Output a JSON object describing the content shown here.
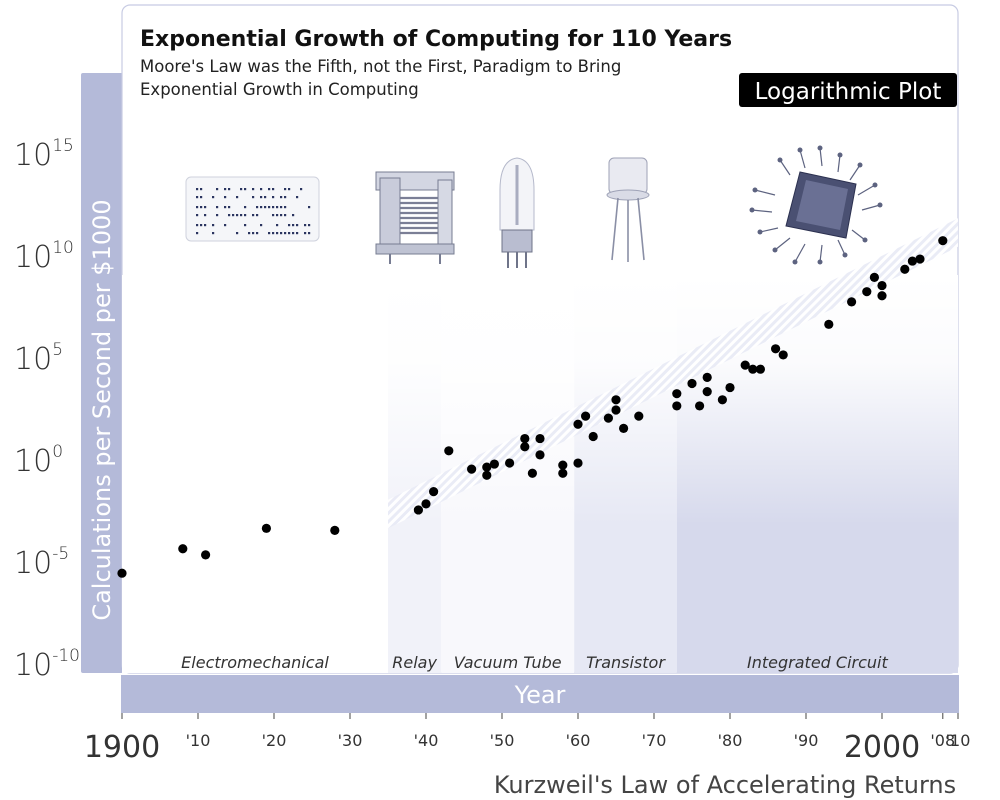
{
  "chart_data": {
    "type": "scatter",
    "title": "Exponential Growth of Computing for 110 Years",
    "subtitle_lines": [
      "Moore's Law was the Fifth, not the First, Paradigm to Bring",
      "Exponential Growth in Computing"
    ],
    "badge": "Logarithmic Plot",
    "ylabel": "Calculations per Second per $1000",
    "xlabel": "Year",
    "footer": "Kurzweil's Law of Accelerating Returns",
    "y_scale": "log10",
    "ylim_exponent": [
      -10,
      15
    ],
    "xlim": [
      1900,
      2010
    ],
    "x_ticks": [
      {
        "value": 1900,
        "label": "1900",
        "major": true
      },
      {
        "value": 1910,
        "label": "'10"
      },
      {
        "value": 1920,
        "label": "'20"
      },
      {
        "value": 1930,
        "label": "'30"
      },
      {
        "value": 1940,
        "label": "'40"
      },
      {
        "value": 1950,
        "label": "'50"
      },
      {
        "value": 1960,
        "label": "'60"
      },
      {
        "value": 1970,
        "label": "'70"
      },
      {
        "value": 1980,
        "label": "'80"
      },
      {
        "value": 1990,
        "label": "'90"
      },
      {
        "value": 2000,
        "label": "2000",
        "major": true
      },
      {
        "value": 2008,
        "label": "'08"
      },
      {
        "value": 2010,
        "label": "'10"
      }
    ],
    "y_ticks": [
      {
        "exponent": 15,
        "base": "10",
        "sup": "15"
      },
      {
        "exponent": 10,
        "base": "10",
        "sup": "10"
      },
      {
        "exponent": 5,
        "base": "10",
        "sup": "5"
      },
      {
        "exponent": 0,
        "base": "10",
        "sup": "0"
      },
      {
        "exponent": -5,
        "base": "10",
        "sup": "-5"
      },
      {
        "exponent": -10,
        "base": "10",
        "sup": "-10"
      }
    ],
    "eras": [
      {
        "name": "Electromechanical",
        "start": 1900,
        "end": 1935,
        "color": "#ffffff",
        "icon": "punch-card-icon"
      },
      {
        "name": "Relay",
        "start": 1935,
        "end": 1942,
        "color": "#f1f2f9",
        "icon": "relay-icon"
      },
      {
        "name": "Vacuum Tube",
        "start": 1942,
        "end": 1959.5,
        "color": "#f8f8fc",
        "icon": "vacuum-tube-icon"
      },
      {
        "name": "Transistor",
        "start": 1959.5,
        "end": 1973,
        "color": "#e6e8f4",
        "icon": "transistor-icon"
      },
      {
        "name": "Integrated Circuit",
        "start": 1973,
        "end": 2010,
        "color": "#d6d9ec",
        "icon": "integrated-circuit-icon"
      }
    ],
    "series": [
      {
        "points": [
          {
            "x": 1900,
            "y": -5.5
          },
          {
            "x": 1908,
            "y": -4.3
          },
          {
            "x": 1911,
            "y": -4.6
          },
          {
            "x": 1919,
            "y": -3.3
          },
          {
            "x": 1928,
            "y": -3.4
          },
          {
            "x": 1939,
            "y": -2.4
          },
          {
            "x": 1940,
            "y": -2.1
          },
          {
            "x": 1941,
            "y": -1.5
          },
          {
            "x": 1943,
            "y": 0.5
          },
          {
            "x": 1946,
            "y": -0.4
          },
          {
            "x": 1948,
            "y": -0.7
          },
          {
            "x": 1948,
            "y": -0.3
          },
          {
            "x": 1949,
            "y": -0.15
          },
          {
            "x": 1951,
            "y": -0.1
          },
          {
            "x": 1953,
            "y": 0.7
          },
          {
            "x": 1953,
            "y": 1.1
          },
          {
            "x": 1954,
            "y": -0.6
          },
          {
            "x": 1955,
            "y": 1.1
          },
          {
            "x": 1955,
            "y": 0.3
          },
          {
            "x": 1958,
            "y": -0.6
          },
          {
            "x": 1958,
            "y": -0.2
          },
          {
            "x": 1960,
            "y": 1.8
          },
          {
            "x": 1960,
            "y": -0.1
          },
          {
            "x": 1961,
            "y": 2.2
          },
          {
            "x": 1962,
            "y": 1.2
          },
          {
            "x": 1964,
            "y": 2.1
          },
          {
            "x": 1965,
            "y": 3.0
          },
          {
            "x": 1965,
            "y": 2.5
          },
          {
            "x": 1966,
            "y": 1.6
          },
          {
            "x": 1968,
            "y": 2.2
          },
          {
            "x": 1973,
            "y": 3.3
          },
          {
            "x": 1973,
            "y": 2.7
          },
          {
            "x": 1975,
            "y": 3.8
          },
          {
            "x": 1976,
            "y": 2.7
          },
          {
            "x": 1977,
            "y": 4.1
          },
          {
            "x": 1977,
            "y": 3.4
          },
          {
            "x": 1979,
            "y": 3.0
          },
          {
            "x": 1980,
            "y": 3.6
          },
          {
            "x": 1982,
            "y": 4.7
          },
          {
            "x": 1983,
            "y": 4.5
          },
          {
            "x": 1984,
            "y": 4.5
          },
          {
            "x": 1986,
            "y": 5.5
          },
          {
            "x": 1987,
            "y": 5.2
          },
          {
            "x": 1993,
            "y": 6.7
          },
          {
            "x": 1996,
            "y": 7.8
          },
          {
            "x": 1998,
            "y": 8.3
          },
          {
            "x": 1999,
            "y": 9.0
          },
          {
            "x": 2000,
            "y": 8.1
          },
          {
            "x": 2000,
            "y": 8.6
          },
          {
            "x": 2003,
            "y": 9.4
          },
          {
            "x": 2004,
            "y": 9.8
          },
          {
            "x": 2005,
            "y": 9.9
          },
          {
            "x": 2008,
            "y": 10.8
          }
        ]
      }
    ]
  }
}
